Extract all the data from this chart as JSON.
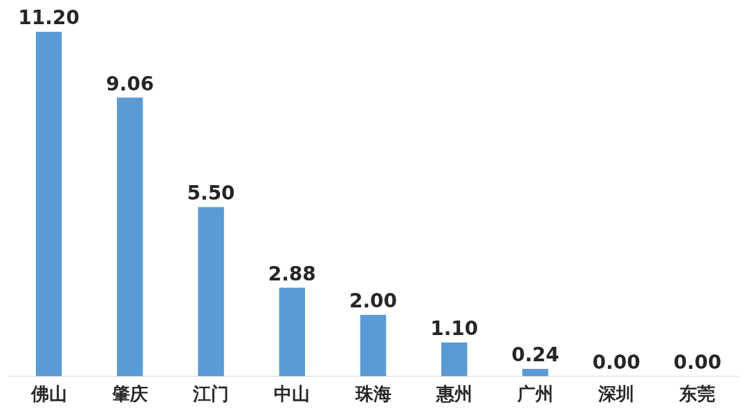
{
  "chart_data": {
    "type": "bar",
    "categories": [
      "佛山",
      "肇庆",
      "江门",
      "中山",
      "珠海",
      "惠州",
      "广州",
      "深圳",
      "东莞"
    ],
    "values": [
      11.2,
      9.06,
      5.5,
      2.88,
      2.0,
      1.1,
      0.24,
      0.0,
      0.0
    ],
    "value_labels": [
      "11.20",
      "9.06",
      "5.50",
      "2.88",
      "2.00",
      "1.10",
      "0.24",
      "0.00",
      "0.00"
    ],
    "color": "#5b9bd5"
  }
}
